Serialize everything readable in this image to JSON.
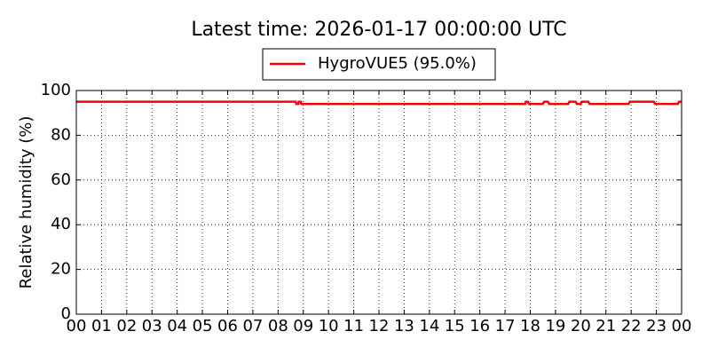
{
  "chart_data": {
    "type": "line",
    "title": "Latest time: 2026-01-17 00:00:00 UTC",
    "y_label": "Relative humidity (%)",
    "x": [
      0,
      8.7,
      8.72,
      8.8,
      8.82,
      8.9,
      8.92,
      17.8,
      17.82,
      17.9,
      17.95,
      18.5,
      18.55,
      18.7,
      18.75,
      19.5,
      19.55,
      19.8,
      19.85,
      20.0,
      20.05,
      20.3,
      20.35,
      21.9,
      21.95,
      22.9,
      22.95,
      23.2,
      23.25,
      23.85,
      23.9,
      24
    ],
    "series": [
      {
        "name": "HygroVUE5 (95.0%)",
        "color": "#ff0000",
        "values": [
          95,
          95,
          94,
          94,
          95,
          95,
          94,
          94,
          95,
          95,
          94,
          94,
          95,
          95,
          94,
          94,
          95,
          95,
          94,
          94,
          95,
          95,
          94,
          94,
          95,
          95,
          94,
          94,
          94,
          94,
          95,
          95
        ]
      }
    ],
    "xlim": [
      0,
      24
    ],
    "xticks": [
      {
        "value": 0,
        "label": "00"
      },
      {
        "value": 1,
        "label": "01"
      },
      {
        "value": 2,
        "label": "02"
      },
      {
        "value": 3,
        "label": "03"
      },
      {
        "value": 4,
        "label": "04"
      },
      {
        "value": 5,
        "label": "05"
      },
      {
        "value": 6,
        "label": "06"
      },
      {
        "value": 7,
        "label": "07"
      },
      {
        "value": 8,
        "label": "08"
      },
      {
        "value": 9,
        "label": "09"
      },
      {
        "value": 10,
        "label": "10"
      },
      {
        "value": 11,
        "label": "11"
      },
      {
        "value": 12,
        "label": "12"
      },
      {
        "value": 13,
        "label": "13"
      },
      {
        "value": 14,
        "label": "14"
      },
      {
        "value": 15,
        "label": "15"
      },
      {
        "value": 16,
        "label": "16"
      },
      {
        "value": 17,
        "label": "17"
      },
      {
        "value": 18,
        "label": "18"
      },
      {
        "value": 19,
        "label": "19"
      },
      {
        "value": 20,
        "label": "20"
      },
      {
        "value": 21,
        "label": "21"
      },
      {
        "value": 22,
        "label": "22"
      },
      {
        "value": 23,
        "label": "23"
      },
      {
        "value": 24,
        "label": "00"
      }
    ],
    "ylim": [
      0,
      100
    ],
    "yticks": [
      0,
      20,
      40,
      60,
      80,
      100
    ],
    "grid": true
  }
}
